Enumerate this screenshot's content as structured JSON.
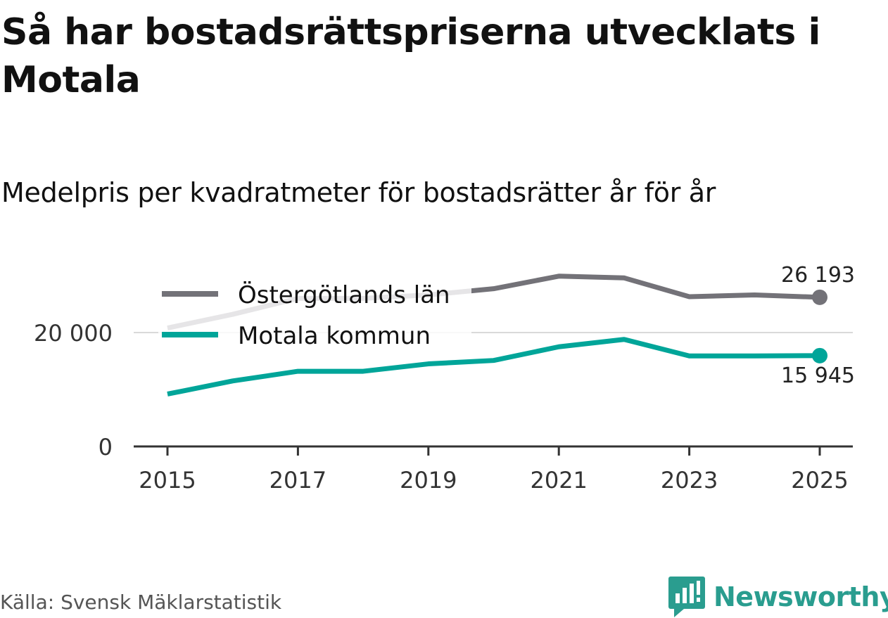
{
  "title": "Så har bostadsrättspriserna utvecklats i Motala",
  "subtitle": "Medelpris per kvadratmeter för bostadsrätter år för år",
  "source": "Källa: Svensk Mäklarstatistik",
  "brand": "Newsworthy",
  "colors": {
    "lan": "#737278",
    "kommun": "#00a599",
    "grid": "#d9d9d9",
    "axis": "#333333",
    "brand": "#2a9d8f"
  },
  "chart_data": {
    "type": "line",
    "title": "Så har bostadsrättspriserna utvecklats i Motala",
    "subtitle": "Medelpris per kvadratmeter för bostadsrätter år för år",
    "xlabel": "",
    "ylabel": "",
    "x": [
      2015,
      2016,
      2017,
      2018,
      2019,
      2020,
      2021,
      2022,
      2023,
      2024,
      2025
    ],
    "xticks": [
      "2015",
      "2017",
      "2019",
      "2021",
      "2023",
      "2025"
    ],
    "yticks": [
      {
        "value": 0,
        "label": "0"
      },
      {
        "value": 20000,
        "label": "20 000"
      }
    ],
    "ylim": [
      0,
      34000
    ],
    "legend_position": "top-left",
    "series": [
      {
        "name": "Östergötlands län",
        "color": "#737278",
        "values": [
          20800,
          23200,
          26000,
          26000,
          26600,
          27700,
          29900,
          29600,
          26300,
          26600,
          26193
        ],
        "end_label": "26 193"
      },
      {
        "name": "Motala kommun",
        "color": "#00a599",
        "values": [
          9200,
          11500,
          13200,
          13200,
          14500,
          15100,
          17500,
          18800,
          15900,
          15900,
          15945
        ],
        "end_label": "15 945"
      }
    ]
  }
}
